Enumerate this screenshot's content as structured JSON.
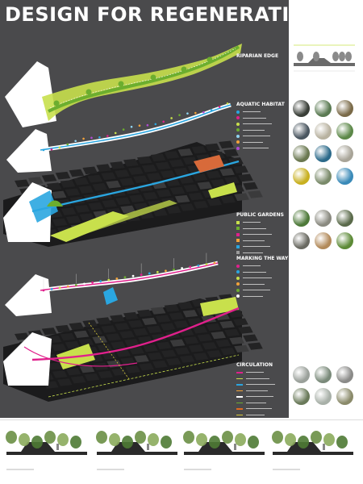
{
  "poster": {
    "title": "DESIGN FOR REGENERATION",
    "colors": {
      "background": "#4a4a4c",
      "lime": "#c8e04c",
      "green": "#6cae2f",
      "blue": "#2aa6e0",
      "magenta": "#e0208c",
      "white": "#ffffff"
    }
  },
  "sections": [
    {
      "key": "riparian",
      "label": "RIPARIAN EDGE"
    },
    {
      "key": "aquatic",
      "label": "AQUATIC HABITAT"
    },
    {
      "key": "gardens",
      "label": "PUBLIC GARDENS"
    },
    {
      "key": "marking",
      "label": "MARKING THE WAY"
    },
    {
      "key": "circulation",
      "label": "CIRCULATION"
    }
  ],
  "legends": {
    "aquatic": [
      {
        "color": "#2aa6e0",
        "icon": "dot"
      },
      {
        "color": "#e0208c",
        "icon": "dot"
      },
      {
        "color": "#c8e04c",
        "icon": "dot"
      },
      {
        "color": "#6cae2f",
        "icon": "dot"
      },
      {
        "color": "#8fd3f0",
        "icon": "dot"
      },
      {
        "color": "#f2a33a",
        "icon": "dot"
      },
      {
        "color": "#b04ad0",
        "icon": "dot"
      }
    ],
    "gardens": [
      {
        "color": "#c8e04c",
        "icon": "square"
      },
      {
        "color": "#6cae2f",
        "icon": "square"
      },
      {
        "color": "#e0208c",
        "icon": "square"
      },
      {
        "color": "#f2a33a",
        "icon": "square"
      },
      {
        "color": "#2aa6e0",
        "icon": "square"
      },
      {
        "color": "#9a9a9a",
        "icon": "square"
      }
    ],
    "marking": [
      {
        "color": "#e0208c",
        "icon": "dot"
      },
      {
        "color": "#2aa6e0",
        "icon": "dot"
      },
      {
        "color": "#c8e04c",
        "icon": "dot"
      },
      {
        "color": "#f2a33a",
        "icon": "dot"
      },
      {
        "color": "#6cae2f",
        "icon": "dot"
      },
      {
        "color": "#ffffff",
        "icon": "dot"
      }
    ],
    "circulation": [
      {
        "color": "#e0208c",
        "icon": "line"
      },
      {
        "color": "#c8e04c",
        "icon": "line"
      },
      {
        "color": "#2aa6e0",
        "icon": "line"
      },
      {
        "color": "#f2a33a",
        "icon": "line"
      },
      {
        "color": "#ffffff",
        "icon": "line"
      },
      {
        "color": "#6cae2f",
        "icon": "line"
      },
      {
        "color": "#e06a20",
        "icon": "line"
      },
      {
        "color": "#d8c83a",
        "icon": "line"
      }
    ]
  },
  "photo_groups": [
    {
      "key": "aquatic-photos",
      "colors": [
        "#3a3f38",
        "#5a7a52",
        "#7a6a48",
        "#4a5660",
        "#b8b2a0",
        "#5c8848",
        "#6a7850",
        "#2c6a8a",
        "#a8a498",
        "#c8b020",
        "#7a8a6a",
        "#3a8ab8"
      ]
    },
    {
      "key": "garden-photos",
      "colors": [
        "#4e7a3a",
        "#8a8a80",
        "#5a6a4a",
        "#6a6a62",
        "#b28a5a",
        "#5c8a36"
      ]
    },
    {
      "key": "circulation-photos",
      "colors": [
        "#9aa09a",
        "#7a8a7a",
        "#8a8a88",
        "#6a7a5a",
        "#a8b0a8",
        "#8a8a6a"
      ]
    }
  ],
  "sections_strip": [
    {
      "caption": ""
    },
    {
      "caption": ""
    },
    {
      "caption": ""
    },
    {
      "caption": ""
    }
  ]
}
